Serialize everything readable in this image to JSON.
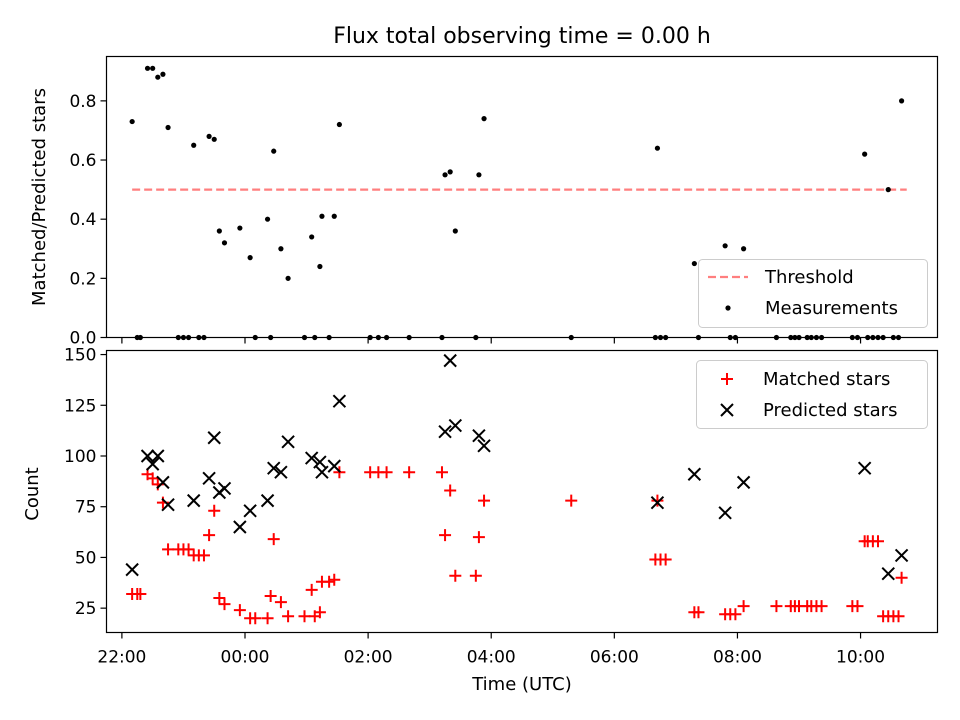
{
  "figure_title": "Flux total observing time = 0.00 h",
  "chart_data": [
    {
      "type": "scatter",
      "ylabel": "Matched/Predicted stars",
      "xlabel": "",
      "xlim": [
        "21:45",
        "11:15"
      ],
      "ylim": [
        0,
        0.95
      ],
      "yticks": [
        0.0,
        0.2,
        0.4,
        0.6,
        0.8
      ],
      "ytick_labels": [
        "0.0",
        "0.2",
        "0.4",
        "0.6",
        "0.8"
      ],
      "grid": false,
      "legend_position": "lower-right",
      "series": [
        {
          "name": "Threshold",
          "kind": "line",
          "style": "dashed",
          "color": "#ff7f7f",
          "points": [
            {
              "x": "22:10",
              "y": 0.5
            },
            {
              "x": "10:45",
              "y": 0.5
            }
          ]
        },
        {
          "name": "Measurements",
          "kind": "scatter",
          "marker": "dot",
          "color": "#000000",
          "points": [
            {
              "x": "22:10",
              "y": 0.73
            },
            {
              "x": "22:15",
              "y": 0.0
            },
            {
              "x": "22:18",
              "y": 0.0
            },
            {
              "x": "22:25",
              "y": 0.91
            },
            {
              "x": "22:30",
              "y": 0.91
            },
            {
              "x": "22:35",
              "y": 0.88
            },
            {
              "x": "22:40",
              "y": 0.89
            },
            {
              "x": "22:45",
              "y": 0.71
            },
            {
              "x": "22:55",
              "y": 0.0
            },
            {
              "x": "23:00",
              "y": 0.0
            },
            {
              "x": "23:05",
              "y": 0.0
            },
            {
              "x": "23:10",
              "y": 0.65
            },
            {
              "x": "23:15",
              "y": 0.0
            },
            {
              "x": "23:20",
              "y": 0.0
            },
            {
              "x": "23:25",
              "y": 0.68
            },
            {
              "x": "23:30",
              "y": 0.67
            },
            {
              "x": "23:35",
              "y": 0.36
            },
            {
              "x": "23:40",
              "y": 0.32
            },
            {
              "x": "23:55",
              "y": 0.37
            },
            {
              "x": "00:05",
              "y": 0.27
            },
            {
              "x": "00:10",
              "y": 0.0
            },
            {
              "x": "00:22",
              "y": 0.4
            },
            {
              "x": "00:25",
              "y": 0.0
            },
            {
              "x": "00:28",
              "y": 0.63
            },
            {
              "x": "00:35",
              "y": 0.3
            },
            {
              "x": "00:42",
              "y": 0.2
            },
            {
              "x": "00:58",
              "y": 0.0
            },
            {
              "x": "01:05",
              "y": 0.34
            },
            {
              "x": "01:08",
              "y": 0.0
            },
            {
              "x": "01:13",
              "y": 0.24
            },
            {
              "x": "01:15",
              "y": 0.41
            },
            {
              "x": "01:22",
              "y": 0.0
            },
            {
              "x": "01:27",
              "y": 0.41
            },
            {
              "x": "01:32",
              "y": 0.72
            },
            {
              "x": "02:02",
              "y": 0.0
            },
            {
              "x": "02:10",
              "y": 0.0
            },
            {
              "x": "02:18",
              "y": 0.0
            },
            {
              "x": "02:40",
              "y": 0.0
            },
            {
              "x": "03:12",
              "y": 0.0
            },
            {
              "x": "03:15",
              "y": 0.55
            },
            {
              "x": "03:20",
              "y": 0.56
            },
            {
              "x": "03:25",
              "y": 0.36
            },
            {
              "x": "03:45",
              "y": 0.0
            },
            {
              "x": "03:48",
              "y": 0.55
            },
            {
              "x": "03:53",
              "y": 0.74
            },
            {
              "x": "05:18",
              "y": 0.0
            },
            {
              "x": "06:40",
              "y": 0.0
            },
            {
              "x": "06:42",
              "y": 0.64
            },
            {
              "x": "06:45",
              "y": 0.0
            },
            {
              "x": "06:50",
              "y": 0.0
            },
            {
              "x": "07:18",
              "y": 0.25
            },
            {
              "x": "07:22",
              "y": 0.0
            },
            {
              "x": "07:48",
              "y": 0.31
            },
            {
              "x": "07:53",
              "y": 0.0
            },
            {
              "x": "07:58",
              "y": 0.0
            },
            {
              "x": "08:06",
              "y": 0.3
            },
            {
              "x": "08:38",
              "y": 0.0
            },
            {
              "x": "08:52",
              "y": 0.0
            },
            {
              "x": "08:56",
              "y": 0.0
            },
            {
              "x": "09:00",
              "y": 0.0
            },
            {
              "x": "09:08",
              "y": 0.0
            },
            {
              "x": "09:12",
              "y": 0.0
            },
            {
              "x": "09:17",
              "y": 0.0
            },
            {
              "x": "09:22",
              "y": 0.0
            },
            {
              "x": "09:52",
              "y": 0.0
            },
            {
              "x": "09:57",
              "y": 0.0
            },
            {
              "x": "10:04",
              "y": 0.62
            },
            {
              "x": "10:07",
              "y": 0.0
            },
            {
              "x": "10:12",
              "y": 0.0
            },
            {
              "x": "10:17",
              "y": 0.0
            },
            {
              "x": "10:22",
              "y": 0.0
            },
            {
              "x": "10:27",
              "y": 0.5
            },
            {
              "x": "10:32",
              "y": 0.0
            },
            {
              "x": "10:37",
              "y": 0.0
            },
            {
              "x": "10:40",
              "y": 0.8
            }
          ]
        }
      ]
    },
    {
      "type": "scatter",
      "xlabel": "Time (UTC)",
      "ylabel": "Count",
      "xlim": [
        "21:45",
        "11:15"
      ],
      "ylim": [
        13,
        152
      ],
      "yticks": [
        25,
        50,
        75,
        100,
        125,
        150
      ],
      "ytick_labels": [
        "25",
        "50",
        "75",
        "100",
        "125",
        "150"
      ],
      "xticks": [
        "22:00",
        "00:00",
        "02:00",
        "04:00",
        "06:00",
        "08:00",
        "10:00"
      ],
      "xtick_labels": [
        "22:00",
        "00:00",
        "02:00",
        "04:00",
        "06:00",
        "08:00",
        "10:00"
      ],
      "grid": false,
      "legend_position": "top-right",
      "series": [
        {
          "name": "Matched stars",
          "marker": "plus",
          "color": "#ff0000",
          "points": [
            {
              "x": "22:10",
              "y": 32
            },
            {
              "x": "22:15",
              "y": 32
            },
            {
              "x": "22:18",
              "y": 32
            },
            {
              "x": "22:25",
              "y": 91
            },
            {
              "x": "22:30",
              "y": 89
            },
            {
              "x": "22:35",
              "y": 86
            },
            {
              "x": "22:40",
              "y": 77
            },
            {
              "x": "22:45",
              "y": 54
            },
            {
              "x": "22:55",
              "y": 54
            },
            {
              "x": "23:00",
              "y": 54
            },
            {
              "x": "23:05",
              "y": 54
            },
            {
              "x": "23:10",
              "y": 51
            },
            {
              "x": "23:15",
              "y": 51
            },
            {
              "x": "23:20",
              "y": 51
            },
            {
              "x": "23:25",
              "y": 61
            },
            {
              "x": "23:30",
              "y": 73
            },
            {
              "x": "23:35",
              "y": 30
            },
            {
              "x": "23:40",
              "y": 27
            },
            {
              "x": "23:55",
              "y": 24
            },
            {
              "x": "00:05",
              "y": 20
            },
            {
              "x": "00:10",
              "y": 20
            },
            {
              "x": "00:22",
              "y": 20
            },
            {
              "x": "00:25",
              "y": 31
            },
            {
              "x": "00:28",
              "y": 59
            },
            {
              "x": "00:35",
              "y": 28
            },
            {
              "x": "00:42",
              "y": 21
            },
            {
              "x": "00:58",
              "y": 21
            },
            {
              "x": "01:05",
              "y": 34
            },
            {
              "x": "01:08",
              "y": 21
            },
            {
              "x": "01:13",
              "y": 23
            },
            {
              "x": "01:15",
              "y": 38
            },
            {
              "x": "01:22",
              "y": 38
            },
            {
              "x": "01:27",
              "y": 39
            },
            {
              "x": "01:32",
              "y": 92
            },
            {
              "x": "02:02",
              "y": 92
            },
            {
              "x": "02:10",
              "y": 92
            },
            {
              "x": "02:18",
              "y": 92
            },
            {
              "x": "02:40",
              "y": 92
            },
            {
              "x": "03:12",
              "y": 92
            },
            {
              "x": "03:15",
              "y": 61
            },
            {
              "x": "03:20",
              "y": 83
            },
            {
              "x": "03:25",
              "y": 41
            },
            {
              "x": "03:45",
              "y": 41
            },
            {
              "x": "03:48",
              "y": 60
            },
            {
              "x": "03:53",
              "y": 78
            },
            {
              "x": "05:18",
              "y": 78
            },
            {
              "x": "06:40",
              "y": 49
            },
            {
              "x": "06:42",
              "y": 78
            },
            {
              "x": "06:45",
              "y": 49
            },
            {
              "x": "06:50",
              "y": 49
            },
            {
              "x": "07:18",
              "y": 23
            },
            {
              "x": "07:22",
              "y": 23
            },
            {
              "x": "07:48",
              "y": 22
            },
            {
              "x": "07:53",
              "y": 22
            },
            {
              "x": "07:58",
              "y": 22
            },
            {
              "x": "08:06",
              "y": 26
            },
            {
              "x": "08:38",
              "y": 26
            },
            {
              "x": "08:52",
              "y": 26
            },
            {
              "x": "08:56",
              "y": 26
            },
            {
              "x": "09:00",
              "y": 26
            },
            {
              "x": "09:08",
              "y": 26
            },
            {
              "x": "09:12",
              "y": 26
            },
            {
              "x": "09:17",
              "y": 26
            },
            {
              "x": "09:22",
              "y": 26
            },
            {
              "x": "09:52",
              "y": 26
            },
            {
              "x": "09:57",
              "y": 26
            },
            {
              "x": "10:04",
              "y": 58
            },
            {
              "x": "10:07",
              "y": 58
            },
            {
              "x": "10:12",
              "y": 58
            },
            {
              "x": "10:17",
              "y": 58
            },
            {
              "x": "10:22",
              "y": 21
            },
            {
              "x": "10:27",
              "y": 21
            },
            {
              "x": "10:32",
              "y": 21
            },
            {
              "x": "10:37",
              "y": 21
            },
            {
              "x": "10:40",
              "y": 40
            }
          ]
        },
        {
          "name": "Predicted stars",
          "marker": "x",
          "color": "#000000",
          "points": [
            {
              "x": "22:10",
              "y": 44
            },
            {
              "x": "22:25",
              "y": 100
            },
            {
              "x": "22:30",
              "y": 96
            },
            {
              "x": "22:35",
              "y": 100
            },
            {
              "x": "22:40",
              "y": 87
            },
            {
              "x": "22:45",
              "y": 76
            },
            {
              "x": "23:10",
              "y": 78
            },
            {
              "x": "23:25",
              "y": 89
            },
            {
              "x": "23:30",
              "y": 109
            },
            {
              "x": "23:35",
              "y": 82
            },
            {
              "x": "23:40",
              "y": 84
            },
            {
              "x": "23:55",
              "y": 65
            },
            {
              "x": "00:05",
              "y": 73
            },
            {
              "x": "00:22",
              "y": 78
            },
            {
              "x": "00:28",
              "y": 94
            },
            {
              "x": "00:35",
              "y": 92
            },
            {
              "x": "00:42",
              "y": 107
            },
            {
              "x": "01:05",
              "y": 99
            },
            {
              "x": "01:13",
              "y": 97
            },
            {
              "x": "01:15",
              "y": 92
            },
            {
              "x": "01:27",
              "y": 95
            },
            {
              "x": "01:32",
              "y": 127
            },
            {
              "x": "03:15",
              "y": 112
            },
            {
              "x": "03:20",
              "y": 147
            },
            {
              "x": "03:25",
              "y": 115
            },
            {
              "x": "03:48",
              "y": 110
            },
            {
              "x": "03:53",
              "y": 105
            },
            {
              "x": "06:42",
              "y": 77
            },
            {
              "x": "07:18",
              "y": 91
            },
            {
              "x": "07:48",
              "y": 72
            },
            {
              "x": "08:06",
              "y": 87
            },
            {
              "x": "10:04",
              "y": 94
            },
            {
              "x": "10:27",
              "y": 42
            },
            {
              "x": "10:40",
              "y": 51
            }
          ]
        }
      ]
    }
  ]
}
